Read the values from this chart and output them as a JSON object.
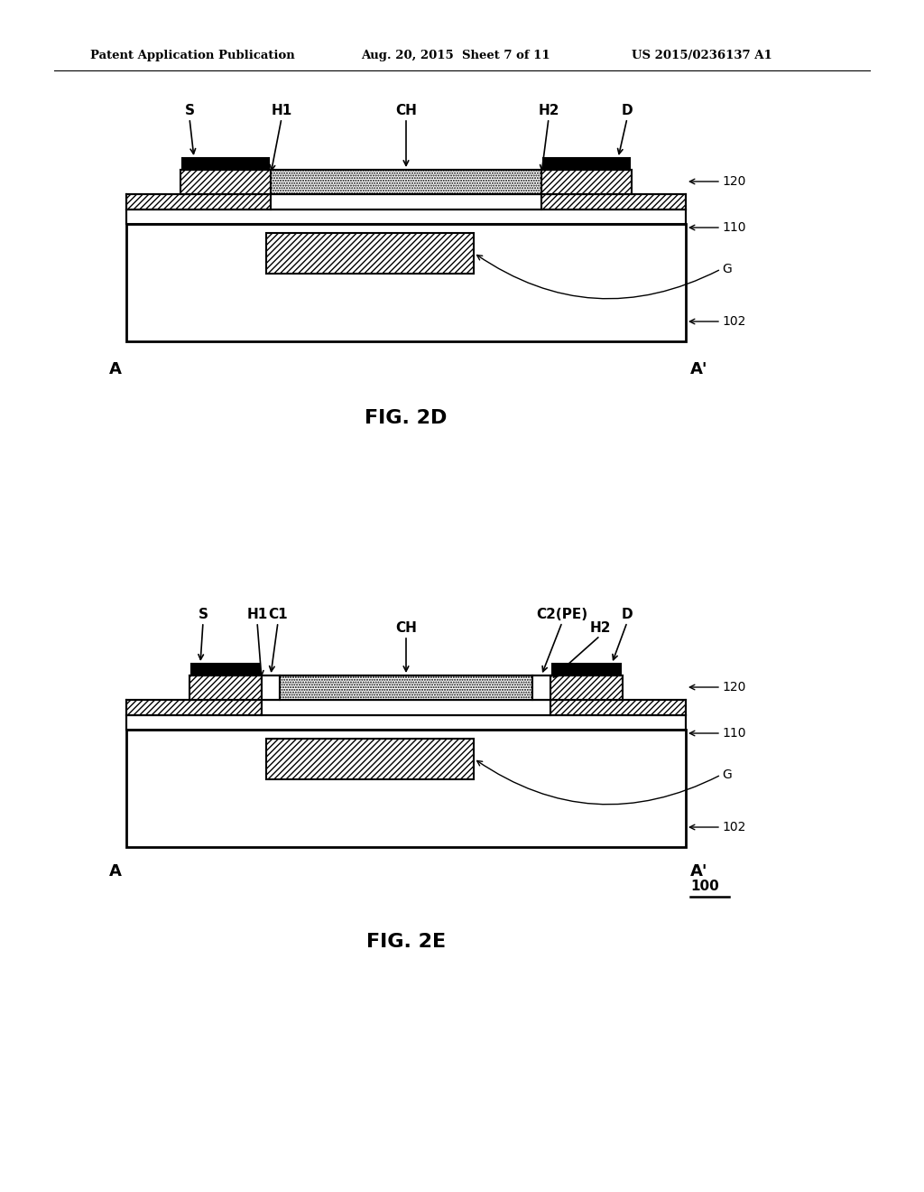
{
  "header_left": "Patent Application Publication",
  "header_mid": "Aug. 20, 2015  Sheet 7 of 11",
  "header_right": "US 2015/0236137 A1",
  "fig_2d_label": "FIG. 2D",
  "fig_2e_label": "FIG. 2E",
  "background": "#ffffff",
  "line_color": "#000000"
}
